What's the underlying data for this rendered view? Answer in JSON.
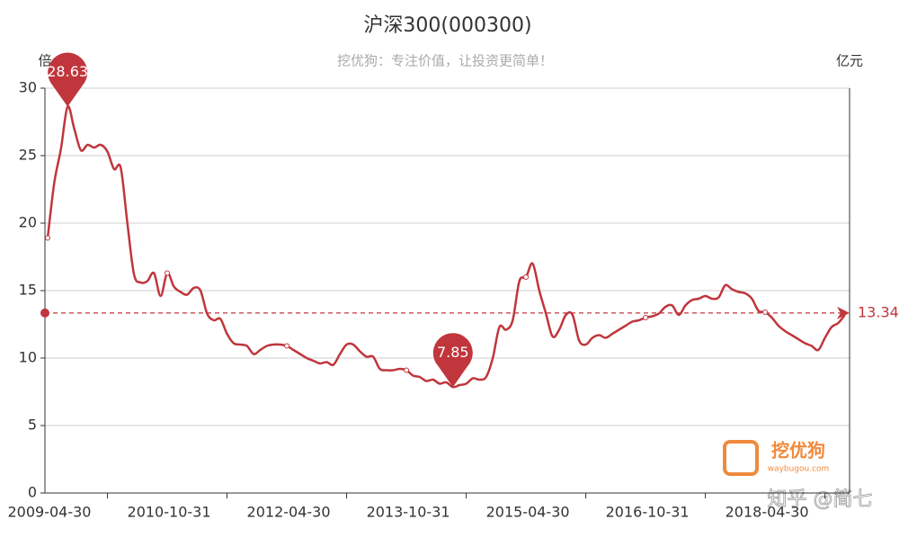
{
  "chart_data": {
    "type": "line",
    "title": "沪深300(000300)",
    "subtitle": "挖优狗：专注价值，让投资更简单！",
    "y_label": "倍",
    "y2_label": "亿元",
    "color": "#c0363c",
    "categories": [
      "2009-04-30",
      null,
      null,
      null,
      null,
      null,
      null,
      null,
      null,
      null,
      null,
      null,
      null,
      null,
      null,
      null,
      null,
      null,
      "2010-10-31",
      null,
      null,
      null,
      null,
      null,
      null,
      null,
      null,
      null,
      null,
      null,
      null,
      null,
      null,
      null,
      null,
      null,
      "2012-04-30",
      null,
      null,
      null,
      null,
      null,
      null,
      null,
      null,
      null,
      null,
      null,
      null,
      null,
      null,
      null,
      null,
      null,
      "2013-10-31",
      null,
      null,
      null,
      null,
      null,
      null,
      null,
      null,
      null,
      null,
      null,
      null,
      null,
      null,
      null,
      null,
      null,
      "2015-04-30",
      null,
      null,
      null,
      null,
      null,
      null,
      null,
      null,
      null,
      null,
      null,
      null,
      null,
      null,
      null,
      null,
      null,
      "2016-10-31",
      null,
      null,
      null,
      null,
      null,
      null,
      null,
      null,
      null,
      null,
      null,
      null,
      null,
      null,
      null,
      null,
      null,
      "2018-04-30",
      null,
      null,
      null,
      null,
      null,
      null,
      null,
      null,
      null,
      null,
      null,
      null
    ],
    "values": [
      18.9,
      23.0,
      25.5,
      28.63,
      27.0,
      25.4,
      25.8,
      25.6,
      25.8,
      25.3,
      24.0,
      24.1,
      20.0,
      16.2,
      15.6,
      15.7,
      16.3,
      14.6,
      16.3,
      15.3,
      14.9,
      14.7,
      15.2,
      15.0,
      13.3,
      12.8,
      12.9,
      11.8,
      11.1,
      11.0,
      10.9,
      10.3,
      10.6,
      10.9,
      11.0,
      11.0,
      10.9,
      10.6,
      10.3,
      10.0,
      9.8,
      9.6,
      9.7,
      9.5,
      10.3,
      11.0,
      11.0,
      10.5,
      10.1,
      10.1,
      9.2,
      9.1,
      9.1,
      9.2,
      9.1,
      8.7,
      8.6,
      8.3,
      8.4,
      8.1,
      8.2,
      7.85,
      8.0,
      8.1,
      8.5,
      8.4,
      8.6,
      10.0,
      12.3,
      12.1,
      12.8,
      15.7,
      16.0,
      17.0,
      15.0,
      13.3,
      11.6,
      12.1,
      13.2,
      13.2,
      11.3,
      11.0,
      11.5,
      11.7,
      11.5,
      11.8,
      12.1,
      12.4,
      12.7,
      12.8,
      13.0,
      13.1,
      13.3,
      13.8,
      13.9,
      13.2,
      13.9,
      14.3,
      14.4,
      14.6,
      14.4,
      14.5,
      15.4,
      15.1,
      14.9,
      14.8,
      14.4,
      13.5,
      13.4,
      13.0,
      12.4,
      12.0,
      11.7,
      11.4,
      11.1,
      10.9,
      10.6,
      11.5,
      12.3,
      12.6,
      13.2
    ],
    "max_index": 3,
    "min_index": 61,
    "mark_line_value": 13.34,
    "ylim": [
      0,
      30
    ],
    "yticks": [
      0,
      5,
      10,
      15,
      20,
      25,
      30
    ],
    "grid": true
  },
  "watermark_logo": "挖优狗",
  "watermark_url": "waybugou.com",
  "watermark_credit": "知乎 @简七"
}
